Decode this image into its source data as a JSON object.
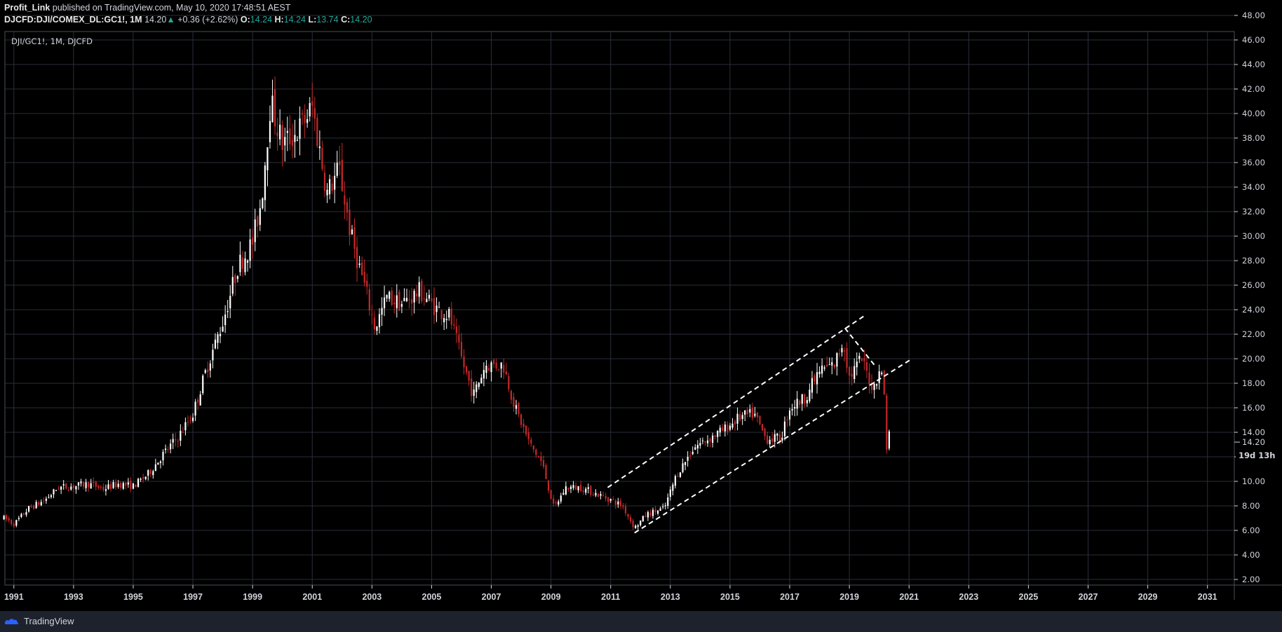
{
  "header": {
    "author": "Profit_Link",
    "published_text": "published on TradingView.com, May 10, 2020 17:48:51 AEST",
    "symbol": "DJCFD:DJI/COMEX_DL:GC1!,",
    "interval": "1M",
    "last": "14.20",
    "change": "+0.36 (+2.62%)",
    "o_label": "O:",
    "o_value": "14.24",
    "h_label": "H:",
    "h_value": "14.24",
    "l_label": "L:",
    "l_value": "13.74",
    "c_label": "C:",
    "c_value": "14.20"
  },
  "legend_text": "DJI/GC1!, 1M, DJCFD",
  "price_label": "14.20",
  "countdown_label": "19d 13h",
  "footer": {
    "brand": "TradingView"
  },
  "colors": {
    "up": "#ffffff",
    "down": "#c62828",
    "grid": "#2a2e39",
    "accent": "#26a69a"
  },
  "chart_data": {
    "type": "candlestick",
    "title": "DJI/GC1!, 1M, DJCFD",
    "x_ticks": [
      "1991",
      "1993",
      "1995",
      "1997",
      "1999",
      "2001",
      "2003",
      "2005",
      "2007",
      "2009",
      "2011",
      "2013",
      "2015",
      "2017",
      "2019",
      "2021",
      "2023",
      "2025",
      "2027",
      "2029",
      "2031"
    ],
    "y_ticks": [
      "2.00",
      "4.00",
      "6.00",
      "8.00",
      "10.00",
      "12.00",
      "14.00",
      "16.00",
      "18.00",
      "20.00",
      "22.00",
      "24.00",
      "26.00",
      "28.00",
      "30.00",
      "32.00",
      "34.00",
      "36.00",
      "38.00",
      "40.00",
      "42.00",
      "44.00",
      "46.00",
      "48.00"
    ],
    "x_range": [
      1990.7,
      2031.9
    ],
    "y_range": [
      2,
      48
    ],
    "grid": true,
    "anchors": [
      [
        1990.7,
        7.0
      ],
      [
        1991.0,
        6.5
      ],
      [
        1991.5,
        7.8
      ],
      [
        1992.0,
        8.4
      ],
      [
        1992.5,
        9.5
      ],
      [
        1993.0,
        9.6
      ],
      [
        1993.5,
        9.8
      ],
      [
        1994.0,
        9.4
      ],
      [
        1994.5,
        9.8
      ],
      [
        1995.0,
        9.6
      ],
      [
        1995.5,
        10.6
      ],
      [
        1996.0,
        12.2
      ],
      [
        1996.5,
        13.6
      ],
      [
        1997.0,
        15.5
      ],
      [
        1997.5,
        19.5
      ],
      [
        1998.0,
        23.0
      ],
      [
        1998.5,
        27.5
      ],
      [
        1999.0,
        29.5
      ],
      [
        1999.3,
        33.0
      ],
      [
        1999.6,
        41.0
      ],
      [
        2000.0,
        37.5
      ],
      [
        2000.5,
        38.5
      ],
      [
        2001.0,
        40.5
      ],
      [
        2001.5,
        33.5
      ],
      [
        2001.9,
        35.5
      ],
      [
        2002.3,
        30.0
      ],
      [
        2002.8,
        25.5
      ],
      [
        2003.1,
        22.5
      ],
      [
        2003.5,
        25.0
      ],
      [
        2004.0,
        24.5
      ],
      [
        2004.6,
        25.5
      ],
      [
        2005.2,
        24.0
      ],
      [
        2005.6,
        23.5
      ],
      [
        2006.0,
        20.0
      ],
      [
        2006.4,
        17.0
      ],
      [
        2006.8,
        19.5
      ],
      [
        2007.4,
        19.5
      ],
      [
        2007.8,
        16.0
      ],
      [
        2008.3,
        13.0
      ],
      [
        2008.7,
        11.5
      ],
      [
        2009.1,
        7.8
      ],
      [
        2009.5,
        9.5
      ],
      [
        2010.0,
        9.5
      ],
      [
        2010.5,
        9.0
      ],
      [
        2011.0,
        8.5
      ],
      [
        2011.4,
        8.0
      ],
      [
        2011.8,
        6.2
      ],
      [
        2012.2,
        7.3
      ],
      [
        2012.8,
        7.8
      ],
      [
        2013.2,
        10.5
      ],
      [
        2013.8,
        12.8
      ],
      [
        2014.3,
        13.5
      ],
      [
        2014.8,
        14.2
      ],
      [
        2015.3,
        15.2
      ],
      [
        2015.8,
        15.5
      ],
      [
        2016.2,
        13.5
      ],
      [
        2016.7,
        13.5
      ],
      [
        2017.0,
        16.0
      ],
      [
        2017.5,
        16.8
      ],
      [
        2018.0,
        19.0
      ],
      [
        2018.5,
        19.5
      ],
      [
        2018.8,
        21.5
      ],
      [
        2019.0,
        18.5
      ],
      [
        2019.4,
        20.0
      ],
      [
        2019.8,
        17.5
      ],
      [
        2020.0,
        19.2
      ],
      [
        2020.15,
        18.0
      ],
      [
        2020.25,
        12.8
      ],
      [
        2020.35,
        14.2
      ]
    ],
    "trendlines": [
      {
        "x1": 2010.9,
        "y1": 9.5,
        "x2": 2019.5,
        "y2": 23.5
      },
      {
        "x1": 2011.8,
        "y1": 5.8,
        "x2": 2021.1,
        "y2": 20.0
      },
      {
        "x1": 2018.85,
        "y1": 22.5,
        "x2": 2019.9,
        "y2": 19.3
      }
    ]
  }
}
